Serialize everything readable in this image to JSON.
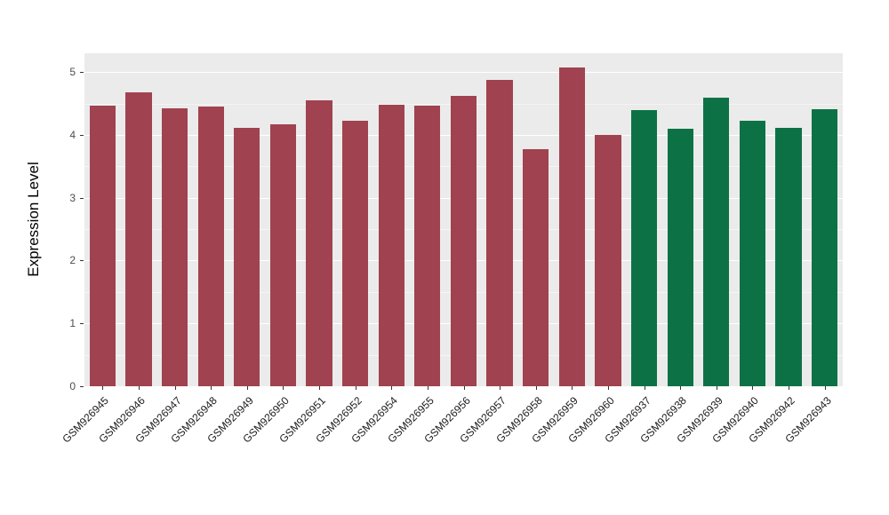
{
  "chart_data": {
    "type": "bar",
    "title": "",
    "xlabel": "",
    "ylabel": "Expression Level",
    "ylim": [
      0,
      5.3
    ],
    "yticks": [
      0,
      1,
      2,
      3,
      4,
      5
    ],
    "yticks_minor": [
      0.5,
      1.5,
      2.5,
      3.5,
      4.5
    ],
    "grid": "on",
    "legend": "none",
    "panel_background": "#EBEBEB",
    "grid_major_color": "#FFFFFF",
    "grid_minor_color": "#F5F5F5",
    "group_colors": {
      "groupA": "#A0424F",
      "groupB": "#0C7245"
    },
    "categories": [
      "GSM926945",
      "GSM926946",
      "GSM926947",
      "GSM926948",
      "GSM926949",
      "GSM926950",
      "GSM926951",
      "GSM926952",
      "GSM926954",
      "GSM926955",
      "GSM926956",
      "GSM926957",
      "GSM926958",
      "GSM926959",
      "GSM926960",
      "GSM926937",
      "GSM926938",
      "GSM926939",
      "GSM926940",
      "GSM926942",
      "GSM926943"
    ],
    "values": [
      4.47,
      4.68,
      4.42,
      4.45,
      4.12,
      4.17,
      4.55,
      4.22,
      4.48,
      4.47,
      4.62,
      4.88,
      3.78,
      5.08,
      4.0,
      4.4,
      4.1,
      4.6,
      4.23,
      4.12,
      4.41
    ],
    "groups": [
      "groupA",
      "groupA",
      "groupA",
      "groupA",
      "groupA",
      "groupA",
      "groupA",
      "groupA",
      "groupA",
      "groupA",
      "groupA",
      "groupA",
      "groupA",
      "groupA",
      "groupA",
      "groupB",
      "groupB",
      "groupB",
      "groupB",
      "groupB",
      "groupB"
    ]
  }
}
